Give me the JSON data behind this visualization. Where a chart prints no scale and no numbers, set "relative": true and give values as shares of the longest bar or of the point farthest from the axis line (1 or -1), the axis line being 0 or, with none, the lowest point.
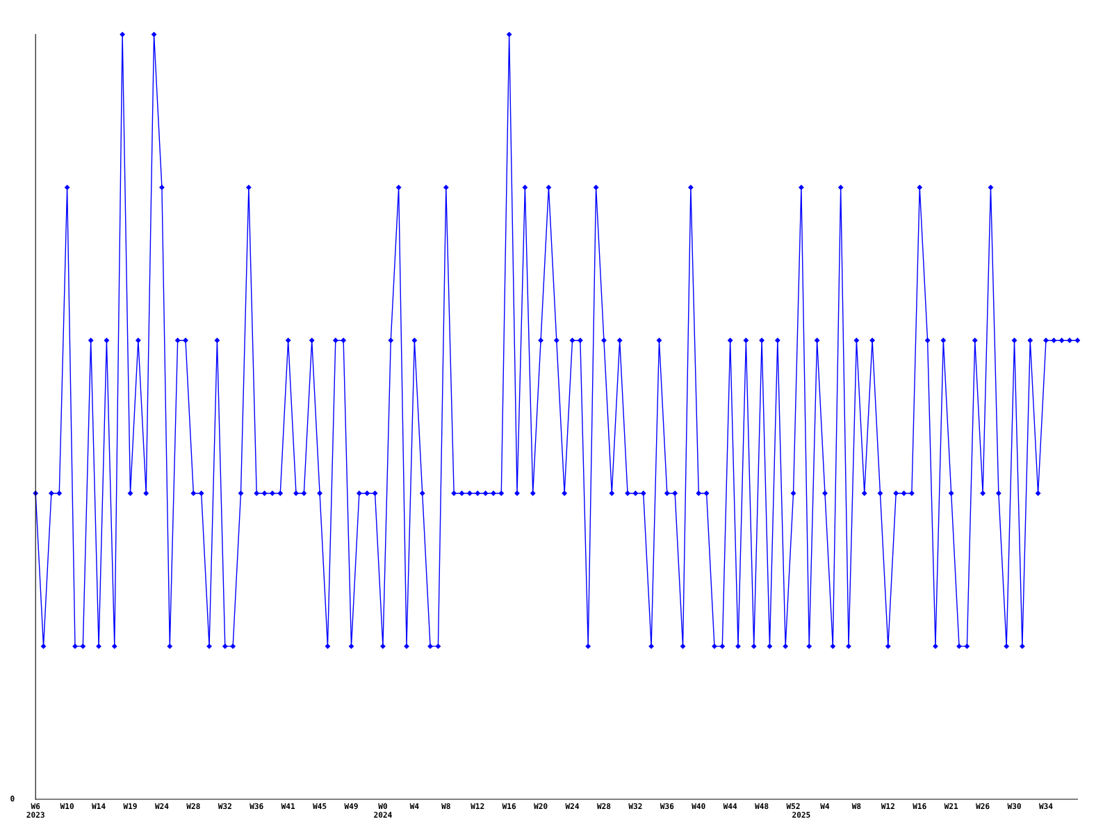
{
  "chart_data": {
    "type": "line",
    "relative": true,
    "color": "#0000ff",
    "marker": "diamond",
    "line_style": "solid",
    "grid": false,
    "legend": false,
    "annotations": [
      "0"
    ],
    "categories": [
      "W6\n2023",
      null,
      null,
      null,
      "W10",
      null,
      null,
      null,
      "W14",
      null,
      null,
      null,
      "W19",
      null,
      null,
      null,
      "W24",
      null,
      null,
      null,
      "W28",
      null,
      null,
      null,
      "W32",
      null,
      null,
      null,
      "W36",
      null,
      null,
      null,
      "W41",
      null,
      null,
      null,
      "W45",
      null,
      null,
      null,
      "W49",
      null,
      null,
      null,
      "W0\n2024",
      null,
      null,
      null,
      "W4",
      null,
      null,
      null,
      "W8",
      null,
      null,
      null,
      "W12",
      null,
      null,
      null,
      "W16",
      null,
      null,
      null,
      "W20",
      null,
      null,
      null,
      "W24",
      null,
      null,
      null,
      "W28",
      null,
      null,
      null,
      "W32",
      null,
      null,
      null,
      "W36",
      null,
      null,
      null,
      "W40",
      null,
      null,
      null,
      "W44",
      null,
      null,
      null,
      "W48",
      null,
      null,
      null,
      "W52",
      "\n2025",
      null,
      null,
      "W4",
      null,
      null,
      null,
      "W8",
      null,
      null,
      null,
      "W12",
      null,
      null,
      null,
      "W16",
      null,
      null,
      null,
      "W21",
      null,
      null,
      null,
      "W26",
      null,
      null,
      null,
      "W30",
      null,
      null,
      null,
      "W34",
      null,
      null,
      null,
      null
    ],
    "values": [
      0.4,
      0.2,
      0.4,
      0.4,
      0.8,
      0.2,
      0.2,
      0.6,
      0.2,
      0.6,
      0.2,
      1,
      0.4,
      0.6,
      0.4,
      1,
      0.8,
      0.2,
      0.6,
      0.6,
      0.4,
      0.4,
      0.2,
      0.6,
      0.2,
      0.2,
      0.4,
      0.8,
      0.4,
      0.4,
      0.4,
      0.4,
      0.6,
      0.4,
      0.4,
      0.6,
      0.4,
      0.2,
      0.6,
      0.6,
      0.2,
      0.4,
      0.4,
      0.4,
      0.2,
      0.6,
      0.8,
      0.2,
      0.6,
      0.4,
      0.2,
      0.2,
      0.8,
      0.4,
      0.4,
      0.4,
      0.4,
      0.4,
      0.4,
      0.4,
      1,
      0.4,
      0.8,
      0.4,
      0.6,
      0.8,
      0.6,
      0.4,
      0.6,
      0.6,
      0.2,
      0.8,
      0.6,
      0.4,
      0.6,
      0.4,
      0.4,
      0.4,
      0.2,
      0.6,
      0.4,
      0.4,
      0.2,
      0.8,
      0.4,
      0.4,
      0.2,
      0.2,
      0.6,
      0.2,
      0.6,
      0.2,
      0.6,
      0.2,
      0.6,
      0.2,
      0.4,
      0.8,
      0.2,
      0.6,
      0.4,
      0.2,
      0.8,
      0.2,
      0.6,
      0.4,
      0.6,
      0.4,
      0.2,
      0.4,
      0.4,
      0.4,
      0.8,
      0.6,
      0.2,
      0.6,
      0.4,
      0.2,
      0.2,
      0.6,
      0.4,
      0.8,
      0.4,
      0.2,
      0.6,
      0.2,
      0.6,
      0.4,
      0.6,
      0.6,
      0.6,
      0.6,
      0.6
    ]
  }
}
